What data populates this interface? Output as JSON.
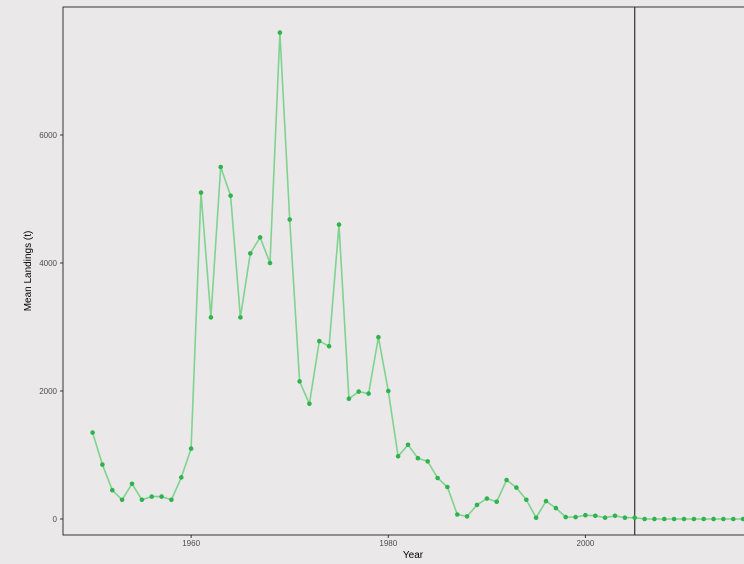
{
  "chart_data": {
    "type": "line",
    "title": "",
    "xlabel": "Year",
    "ylabel": "Mean Landings (t)",
    "xlim": [
      1947,
      2017
    ],
    "ylim": [
      -250,
      8000
    ],
    "x_ticks": [
      1960,
      1980,
      2000
    ],
    "y_ticks": [
      0,
      2000,
      4000,
      6000
    ],
    "x_tick_labels": [
      "1960",
      "1980",
      "2000"
    ],
    "y_tick_labels": [
      "0",
      "2000",
      "4000",
      "6000"
    ],
    "grid": false,
    "legend": "none",
    "vline_x": 2005,
    "colors": {
      "background": "#ebe8e9",
      "series": "#7ed38e",
      "points": "#2fb34d",
      "vline": "#333333",
      "axis": "#333333"
    },
    "series": [
      {
        "x": [
          1950,
          1951,
          1952,
          1953,
          1954,
          1955,
          1956,
          1957,
          1958,
          1959,
          1960,
          1961,
          1962,
          1963,
          1964,
          1965,
          1966,
          1967,
          1968,
          1969,
          1970,
          1971,
          1972,
          1973,
          1974,
          1975,
          1976,
          1977,
          1978,
          1979,
          1980,
          1981,
          1982,
          1983,
          1984,
          1985,
          1986,
          1987,
          1988,
          1989,
          1990,
          1991,
          1992,
          1993,
          1994,
          1995,
          1996,
          1997,
          1998,
          1999,
          2000,
          2001,
          2002,
          2003,
          2004,
          2005,
          2006,
          2007,
          2008,
          2009,
          2010,
          2011,
          2012,
          2013,
          2014,
          2015,
          2016
        ],
        "y": [
          1350,
          850,
          450,
          300,
          550,
          300,
          350,
          350,
          300,
          650,
          1100,
          5100,
          3150,
          5500,
          5050,
          3150,
          4150,
          4400,
          4000,
          7600,
          4680,
          2150,
          1800,
          2780,
          2700,
          4600,
          1880,
          1990,
          1960,
          2840,
          2000,
          980,
          1160,
          950,
          900,
          640,
          500,
          70,
          40,
          220,
          320,
          270,
          610,
          490,
          300,
          20,
          280,
          170,
          30,
          30,
          60,
          50,
          20,
          50,
          20,
          20,
          0,
          0,
          0,
          0,
          0,
          0,
          0,
          0,
          0,
          0,
          0
        ]
      }
    ]
  }
}
